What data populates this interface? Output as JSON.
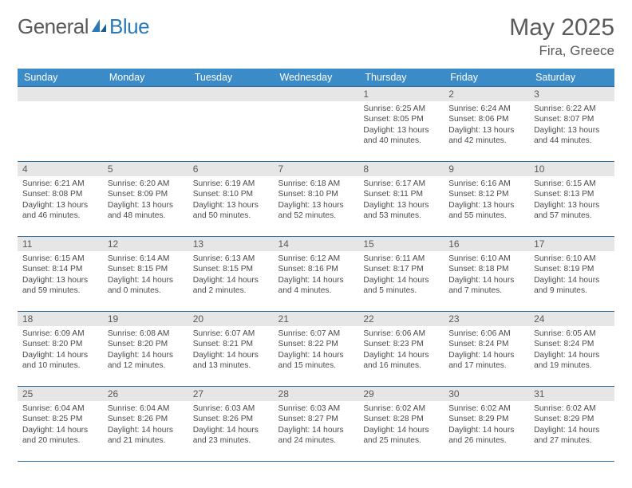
{
  "logo": {
    "part1": "General",
    "part2": "Blue"
  },
  "title": "May 2025",
  "location": "Fira, Greece",
  "colors": {
    "header_bg": "#3b8bc9",
    "header_text": "#ffffff",
    "daynum_bg": "#e6e6e6",
    "border": "#2a6a9e",
    "body_text": "#4a4a4a",
    "title_text": "#5a5a5a",
    "logo_gray": "#5a5a5a",
    "logo_blue": "#2a7ab8"
  },
  "dayHeaders": [
    "Sunday",
    "Monday",
    "Tuesday",
    "Wednesday",
    "Thursday",
    "Friday",
    "Saturday"
  ],
  "weeks": [
    [
      null,
      null,
      null,
      null,
      {
        "n": "1",
        "sunrise": "6:25 AM",
        "sunset": "8:05 PM",
        "daylight": "13 hours and 40 minutes."
      },
      {
        "n": "2",
        "sunrise": "6:24 AM",
        "sunset": "8:06 PM",
        "daylight": "13 hours and 42 minutes."
      },
      {
        "n": "3",
        "sunrise": "6:22 AM",
        "sunset": "8:07 PM",
        "daylight": "13 hours and 44 minutes."
      }
    ],
    [
      {
        "n": "4",
        "sunrise": "6:21 AM",
        "sunset": "8:08 PM",
        "daylight": "13 hours and 46 minutes."
      },
      {
        "n": "5",
        "sunrise": "6:20 AM",
        "sunset": "8:09 PM",
        "daylight": "13 hours and 48 minutes."
      },
      {
        "n": "6",
        "sunrise": "6:19 AM",
        "sunset": "8:10 PM",
        "daylight": "13 hours and 50 minutes."
      },
      {
        "n": "7",
        "sunrise": "6:18 AM",
        "sunset": "8:10 PM",
        "daylight": "13 hours and 52 minutes."
      },
      {
        "n": "8",
        "sunrise": "6:17 AM",
        "sunset": "8:11 PM",
        "daylight": "13 hours and 53 minutes."
      },
      {
        "n": "9",
        "sunrise": "6:16 AM",
        "sunset": "8:12 PM",
        "daylight": "13 hours and 55 minutes."
      },
      {
        "n": "10",
        "sunrise": "6:15 AM",
        "sunset": "8:13 PM",
        "daylight": "13 hours and 57 minutes."
      }
    ],
    [
      {
        "n": "11",
        "sunrise": "6:15 AM",
        "sunset": "8:14 PM",
        "daylight": "13 hours and 59 minutes."
      },
      {
        "n": "12",
        "sunrise": "6:14 AM",
        "sunset": "8:15 PM",
        "daylight": "14 hours and 0 minutes."
      },
      {
        "n": "13",
        "sunrise": "6:13 AM",
        "sunset": "8:15 PM",
        "daylight": "14 hours and 2 minutes."
      },
      {
        "n": "14",
        "sunrise": "6:12 AM",
        "sunset": "8:16 PM",
        "daylight": "14 hours and 4 minutes."
      },
      {
        "n": "15",
        "sunrise": "6:11 AM",
        "sunset": "8:17 PM",
        "daylight": "14 hours and 5 minutes."
      },
      {
        "n": "16",
        "sunrise": "6:10 AM",
        "sunset": "8:18 PM",
        "daylight": "14 hours and 7 minutes."
      },
      {
        "n": "17",
        "sunrise": "6:10 AM",
        "sunset": "8:19 PM",
        "daylight": "14 hours and 9 minutes."
      }
    ],
    [
      {
        "n": "18",
        "sunrise": "6:09 AM",
        "sunset": "8:20 PM",
        "daylight": "14 hours and 10 minutes."
      },
      {
        "n": "19",
        "sunrise": "6:08 AM",
        "sunset": "8:20 PM",
        "daylight": "14 hours and 12 minutes."
      },
      {
        "n": "20",
        "sunrise": "6:07 AM",
        "sunset": "8:21 PM",
        "daylight": "14 hours and 13 minutes."
      },
      {
        "n": "21",
        "sunrise": "6:07 AM",
        "sunset": "8:22 PM",
        "daylight": "14 hours and 15 minutes."
      },
      {
        "n": "22",
        "sunrise": "6:06 AM",
        "sunset": "8:23 PM",
        "daylight": "14 hours and 16 minutes."
      },
      {
        "n": "23",
        "sunrise": "6:06 AM",
        "sunset": "8:24 PM",
        "daylight": "14 hours and 17 minutes."
      },
      {
        "n": "24",
        "sunrise": "6:05 AM",
        "sunset": "8:24 PM",
        "daylight": "14 hours and 19 minutes."
      }
    ],
    [
      {
        "n": "25",
        "sunrise": "6:04 AM",
        "sunset": "8:25 PM",
        "daylight": "14 hours and 20 minutes."
      },
      {
        "n": "26",
        "sunrise": "6:04 AM",
        "sunset": "8:26 PM",
        "daylight": "14 hours and 21 minutes."
      },
      {
        "n": "27",
        "sunrise": "6:03 AM",
        "sunset": "8:26 PM",
        "daylight": "14 hours and 23 minutes."
      },
      {
        "n": "28",
        "sunrise": "6:03 AM",
        "sunset": "8:27 PM",
        "daylight": "14 hours and 24 minutes."
      },
      {
        "n": "29",
        "sunrise": "6:02 AM",
        "sunset": "8:28 PM",
        "daylight": "14 hours and 25 minutes."
      },
      {
        "n": "30",
        "sunrise": "6:02 AM",
        "sunset": "8:29 PM",
        "daylight": "14 hours and 26 minutes."
      },
      {
        "n": "31",
        "sunrise": "6:02 AM",
        "sunset": "8:29 PM",
        "daylight": "14 hours and 27 minutes."
      }
    ]
  ],
  "labels": {
    "sunrise": "Sunrise: ",
    "sunset": "Sunset: ",
    "daylight": "Daylight: "
  }
}
